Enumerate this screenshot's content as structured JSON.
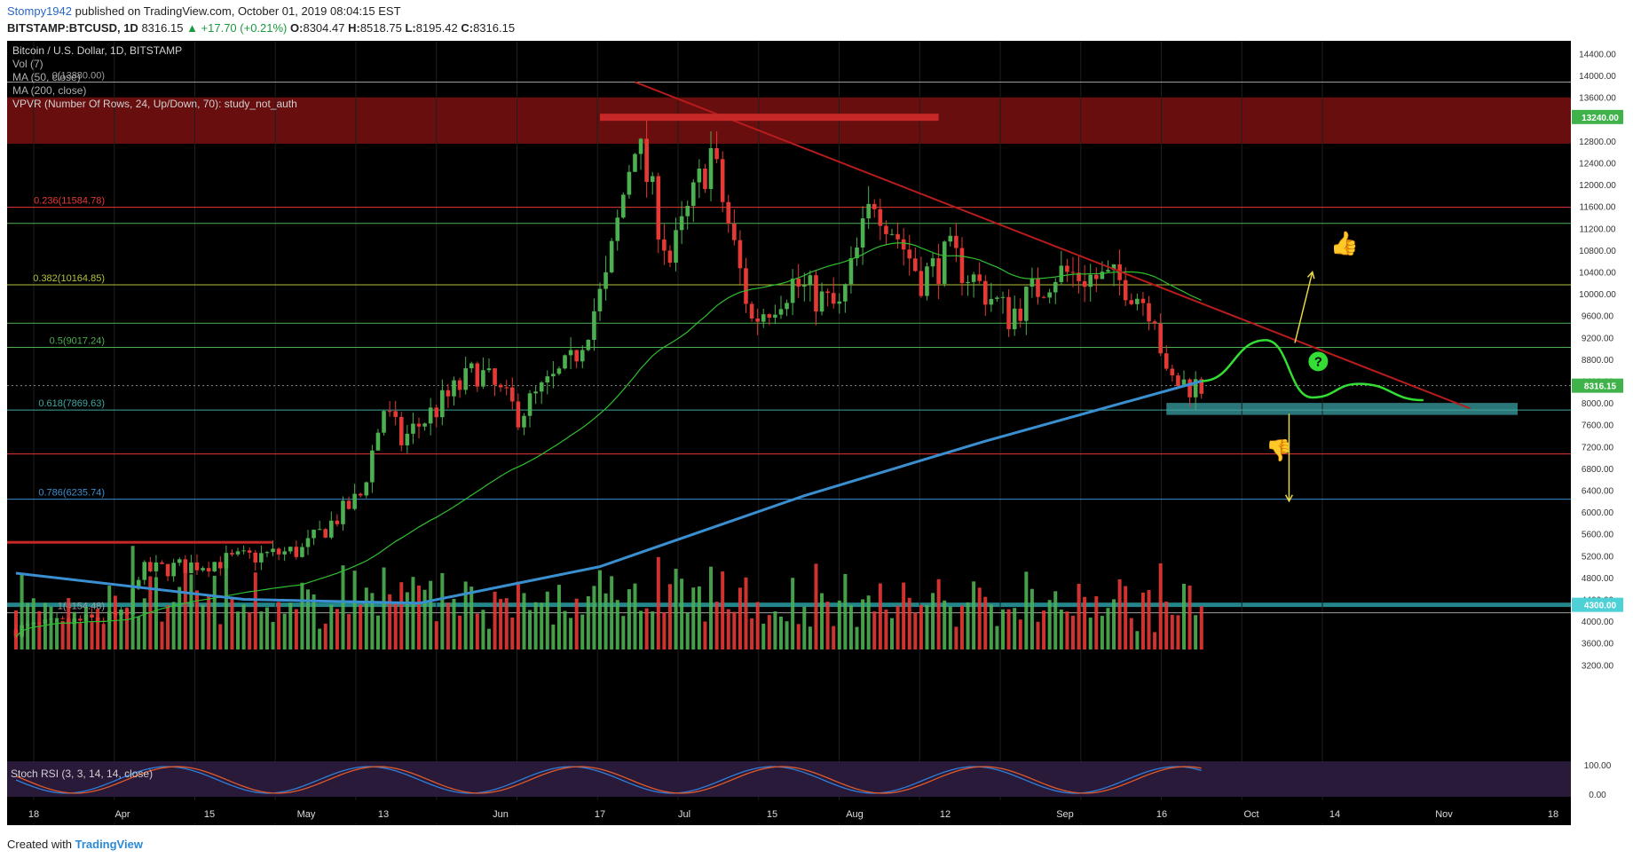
{
  "header": {
    "user": "Stompy1942",
    "published_text": "published on TradingView.com, October 01, 2019 08:04:15 EST",
    "symbol_line": "BITSTAMP:BTCUSD, 1D",
    "last": "8316.15",
    "change": "▲ +17.70 (+0.21%)",
    "o_label": "O:",
    "o": "8304.47",
    "h_label": "H:",
    "h": "8518.75",
    "l_label": "L:",
    "l": "8195.42",
    "c_label": "C:",
    "c": "8316.15"
  },
  "legend": {
    "title": "Bitcoin / U.S. Dollar, 1D, BITSTAMP",
    "vol": "Vol (7)",
    "ma50": "MA (50, close)",
    "ma200": "MA (200, close)",
    "vpvr": "VPVR (Number Of Rows, 24, Up/Down, 70): study_not_auth",
    "stoch": "Stoch RSI (3, 3, 14, 14, close)"
  },
  "footer": {
    "created": "Created with",
    "brand": "TradingView"
  },
  "colors": {
    "bg": "#000000",
    "up": "#4caf50",
    "down": "#e53935",
    "ma50": "#2fbf2f",
    "ma200": "#3a8fd0",
    "trendline": "#b71c1c",
    "forecast": "#33dd33",
    "arrow": "#e6d84a",
    "support_zone": "#3a9da0",
    "resistance_zone": "#7a1010"
  },
  "chart_data": {
    "type": "candlestick",
    "x_ticks": [
      "18",
      "Apr",
      "15",
      "May",
      "13",
      "Jun",
      "17",
      "Jul",
      "15",
      "Aug",
      "12",
      "Sep",
      "16",
      "Oct",
      "14",
      "Nov",
      "18"
    ],
    "y_ticks": [
      "14400.00",
      "14000.00",
      "13600.00",
      "13200.00",
      "12800.00",
      "12400.00",
      "12000.00",
      "11600.00",
      "11200.00",
      "10800.00",
      "10400.00",
      "10000.00",
      "9600.00",
      "9200.00",
      "8800.00",
      "8400.00",
      "8000.00",
      "7600.00",
      "7200.00",
      "6800.00",
      "6400.00",
      "6000.00",
      "5600.00",
      "5200.00",
      "4800.00",
      "4400.00",
      "4000.00",
      "3600.00",
      "3200.00"
    ],
    "y_range": [
      3000,
      14500
    ],
    "price_labels": [
      {
        "text": "13240.00",
        "value": 13240,
        "color": "#3fb24a"
      },
      {
        "text": "8316.15",
        "value": 8316.15,
        "color": "#3fb24a"
      },
      {
        "text": "4300.00",
        "value": 4300,
        "color": "#4dd0d6"
      }
    ],
    "fib_levels": [
      {
        "label": "0(13880.00)",
        "value": 13880,
        "color": "#9e9e9e"
      },
      {
        "label": "0.236(11584.78)",
        "value": 11584.78,
        "color": "#e53935"
      },
      {
        "label": "0.382(10164.85)",
        "value": 10164.85,
        "color": "#b5c23a"
      },
      {
        "label": "0.5(9017.24)",
        "value": 9017.24,
        "color": "#4caf50"
      },
      {
        "label": "0.618(7869.63)",
        "value": 7869.63,
        "color": "#3fa7a0"
      },
      {
        "label": "0.786(6235.74)",
        "value": 6235.74,
        "color": "#3a8fd0"
      },
      {
        "label": "1(4154.48)",
        "value": 4154.48,
        "color": "#9e9e9e"
      }
    ],
    "extra_levels": [
      {
        "value": 11290,
        "color": "#4caf50"
      },
      {
        "value": 9460,
        "color": "#4caf50"
      },
      {
        "value": 8316.15,
        "color": "#888888"
      },
      {
        "value": 7065,
        "color": "#e53935"
      }
    ],
    "resistance_zone": [
      12750,
      13600
    ],
    "support_zone": [
      7780,
      8000
    ],
    "trendline": [
      {
        "x": "2019-06-26",
        "y": 13880
      },
      {
        "x": "2019-11-16",
        "y": 7900
      }
    ],
    "candles_anchor_dates": [
      "2019-03-12",
      "2019-10-01"
    ],
    "closes_anchor": [
      {
        "x": "2019-03-12",
        "y": 3850
      },
      {
        "x": "2019-03-31",
        "y": 4100
      },
      {
        "x": "2019-04-02",
        "y": 4900
      },
      {
        "x": "2019-04-30",
        "y": 5300
      },
      {
        "x": "2019-05-10",
        "y": 6300
      },
      {
        "x": "2019-05-14",
        "y": 7900
      },
      {
        "x": "2019-05-17",
        "y": 7300
      },
      {
        "x": "2019-05-30",
        "y": 8600
      },
      {
        "x": "2019-06-06",
        "y": 7800
      },
      {
        "x": "2019-06-15",
        "y": 8700
      },
      {
        "x": "2019-06-21",
        "y": 10200
      },
      {
        "x": "2019-06-26",
        "y": 12900
      },
      {
        "x": "2019-07-02",
        "y": 10600
      },
      {
        "x": "2019-07-09",
        "y": 12600
      },
      {
        "x": "2019-07-16",
        "y": 9500
      },
      {
        "x": "2019-07-23",
        "y": 10200
      },
      {
        "x": "2019-07-31",
        "y": 9700
      },
      {
        "x": "2019-08-06",
        "y": 11800
      },
      {
        "x": "2019-08-14",
        "y": 10300
      },
      {
        "x": "2019-08-19",
        "y": 10700
      },
      {
        "x": "2019-08-29",
        "y": 9600
      },
      {
        "x": "2019-09-06",
        "y": 10400
      },
      {
        "x": "2019-09-18",
        "y": 10200
      },
      {
        "x": "2019-09-23",
        "y": 9700
      },
      {
        "x": "2019-09-25",
        "y": 8400
      },
      {
        "x": "2019-10-01",
        "y": 8316.15
      }
    ],
    "forecast_path": [
      {
        "x": "2019-10-01",
        "y": 8400
      },
      {
        "x": "2019-10-12",
        "y": 9150
      },
      {
        "x": "2019-10-20",
        "y": 8100
      },
      {
        "x": "2019-10-28",
        "y": 8350
      },
      {
        "x": "2019-11-08",
        "y": 8050
      }
    ],
    "arrow_up": {
      "from": {
        "x": "2019-10-17",
        "y": 9100
      },
      "to": {
        "x": "2019-10-20",
        "y": 10400
      }
    },
    "arrow_down": {
      "from": {
        "x": "2019-10-16",
        "y": 7800
      },
      "to": {
        "x": "2019-10-16",
        "y": 6200
      }
    },
    "stoch_ticks": [
      "100.00",
      "0.00"
    ]
  }
}
